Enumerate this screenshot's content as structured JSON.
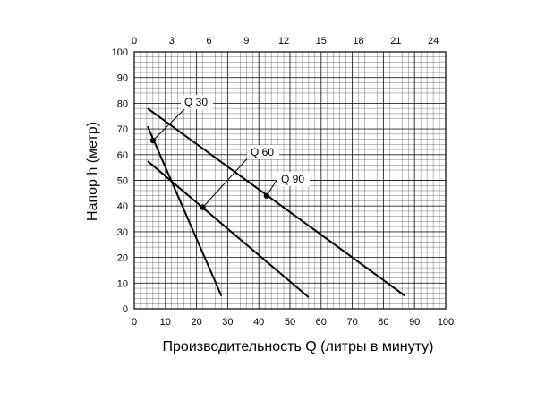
{
  "chart_data": {
    "type": "line",
    "xlabel": "Производительность Q (литры в минуту)",
    "ylabel": "Напор h (метр)",
    "xlim": [
      0,
      100
    ],
    "ylim": [
      0,
      100
    ],
    "x_ticks": [
      0,
      10,
      20,
      30,
      40,
      50,
      60,
      70,
      80,
      90,
      100
    ],
    "y_ticks": [
      0,
      10,
      20,
      30,
      40,
      50,
      60,
      70,
      80,
      90,
      100
    ],
    "top_axis": {
      "xlim": [
        0,
        25
      ],
      "ticks": [
        0,
        3,
        6,
        9,
        12,
        15,
        18,
        21,
        24
      ]
    },
    "grid": true,
    "series": [
      {
        "name": "Q 30",
        "x": [
          4.3,
          28
        ],
        "y": [
          71,
          5
        ],
        "marker": {
          "x": 6,
          "y": 65.5
        }
      },
      {
        "name": "Q 60",
        "x": [
          4.3,
          56
        ],
        "y": [
          57.5,
          4.5
        ],
        "marker": {
          "x": 22,
          "y": 39.5
        }
      },
      {
        "name": "Q 90",
        "x": [
          4.3,
          87
        ],
        "y": [
          78,
          5
        ],
        "marker": {
          "x": 42.5,
          "y": 44
        }
      }
    ],
    "annotations": [
      {
        "text": "Q 30",
        "series": 0
      },
      {
        "text": "Q 60",
        "series": 1
      },
      {
        "text": "Q 90",
        "series": 2
      }
    ],
    "colors": {
      "line": "#000000",
      "grid": "#000000",
      "background": "#ffffff"
    }
  }
}
